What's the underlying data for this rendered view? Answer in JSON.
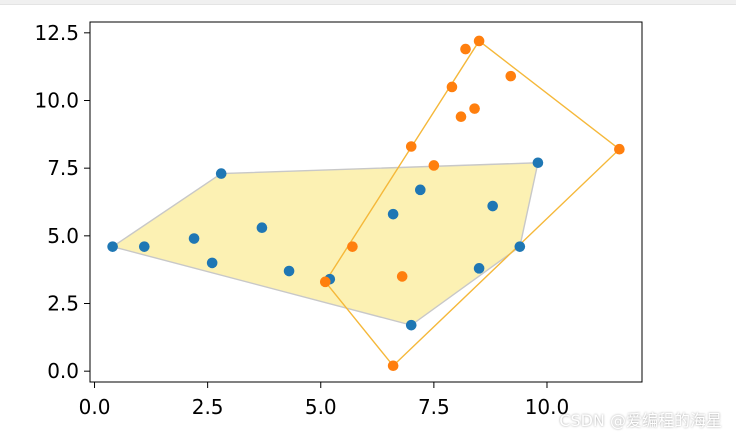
{
  "chart_data": {
    "type": "scatter",
    "title": "",
    "xlabel": "",
    "ylabel": "",
    "xlim": [
      -0.1,
      12.1
    ],
    "ylim": [
      -0.4,
      12.9
    ],
    "xticks": [
      0.0,
      2.5,
      5.0,
      7.5,
      10.0
    ],
    "xtick_labels": [
      "0.0",
      "2.5",
      "5.0",
      "7.5",
      "10.0"
    ],
    "yticks": [
      0.0,
      2.5,
      5.0,
      7.5,
      10.0,
      12.5
    ],
    "ytick_labels": [
      "0.0",
      "2.5",
      "5.0",
      "7.5",
      "10.0",
      "12.5"
    ],
    "grid": false,
    "series": [
      {
        "color": "#1f77b4",
        "points": [
          [
            0.4,
            4.6
          ],
          [
            1.1,
            4.6
          ],
          [
            2.2,
            4.9
          ],
          [
            2.6,
            4.0
          ],
          [
            2.8,
            7.3
          ],
          [
            3.7,
            5.3
          ],
          [
            4.3,
            3.7
          ],
          [
            5.2,
            3.4
          ],
          [
            6.6,
            5.8
          ],
          [
            7.0,
            1.7
          ],
          [
            7.2,
            6.7
          ],
          [
            8.5,
            3.8
          ],
          [
            8.8,
            6.1
          ],
          [
            9.4,
            4.6
          ],
          [
            9.8,
            7.7
          ]
        ],
        "hull": [
          [
            0.4,
            4.6
          ],
          [
            2.8,
            7.3
          ],
          [
            9.8,
            7.7
          ],
          [
            9.4,
            4.6
          ],
          [
            7.0,
            1.7
          ]
        ],
        "hull_fill": "#fbeea6",
        "hull_stroke": "#c8c8c8"
      },
      {
        "color": "#ff7f0e",
        "points": [
          [
            5.1,
            3.3
          ],
          [
            5.7,
            4.6
          ],
          [
            6.6,
            0.2
          ],
          [
            6.8,
            3.5
          ],
          [
            7.0,
            8.3
          ],
          [
            7.5,
            7.6
          ],
          [
            7.9,
            10.5
          ],
          [
            8.1,
            9.4
          ],
          [
            8.2,
            11.9
          ],
          [
            8.4,
            9.7
          ],
          [
            8.5,
            12.2
          ],
          [
            9.2,
            10.9
          ],
          [
            11.6,
            8.2
          ]
        ],
        "hull": [
          [
            5.1,
            3.3
          ],
          [
            8.5,
            12.2
          ],
          [
            11.6,
            8.2
          ],
          [
            6.6,
            0.2
          ]
        ],
        "hull_stroke": "#f5b83a"
      }
    ]
  },
  "watermark": "CSDN @爱编程的海星"
}
